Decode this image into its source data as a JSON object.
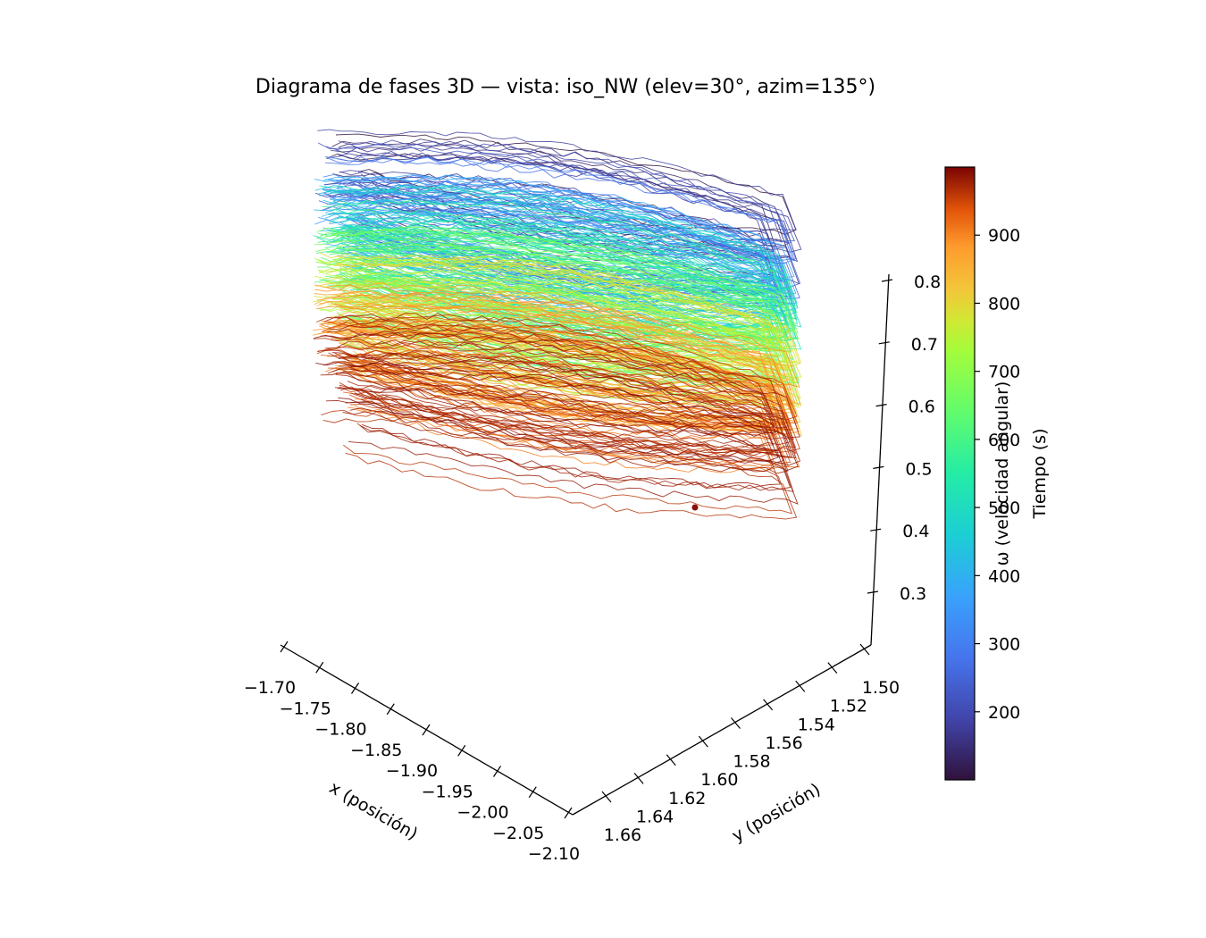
{
  "chart_data": {
    "type": "line",
    "projection": "3d",
    "title": "Diagrama de fases 3D — vista: iso_NW (elev=30°, azim=135°)",
    "xlabel": "x (posición)",
    "ylabel": "y (posición)",
    "zlabel": "ω (velocidad angular)",
    "x_ticks": [
      "−1.70",
      "−1.75",
      "−1.80",
      "−1.85",
      "−1.90",
      "−1.95",
      "−2.00",
      "−2.05",
      "−2.10"
    ],
    "y_ticks": [
      "1.50",
      "1.52",
      "1.54",
      "1.56",
      "1.58",
      "1.60",
      "1.62",
      "1.64",
      "1.66"
    ],
    "z_ticks": [
      "0.8",
      "0.7",
      "0.6",
      "0.5",
      "0.4",
      "0.3"
    ],
    "xlim": [
      -2.1,
      -1.7
    ],
    "ylim": [
      1.5,
      1.66
    ],
    "zlim": [
      0.25,
      0.8
    ],
    "colorbar": {
      "label": "Tiempo (s)",
      "colormap": "turbo",
      "range": [
        100,
        1000
      ],
      "ticks": [
        "200",
        "300",
        "400",
        "500",
        "600",
        "700",
        "800",
        "900"
      ]
    },
    "series_color_by": "time",
    "trajectory_bands": [
      {
        "t": 150,
        "z": 0.78
      },
      {
        "t": 250,
        "z": 0.74
      },
      {
        "t": 350,
        "z": 0.71
      },
      {
        "t": 450,
        "z": 0.69
      },
      {
        "t": 550,
        "z": 0.66
      },
      {
        "t": 650,
        "z": 0.62
      },
      {
        "t": 750,
        "z": 0.58
      },
      {
        "t": 850,
        "z": 0.54
      },
      {
        "t": 950,
        "z": 0.48
      }
    ],
    "final_point": {
      "t": 990,
      "z": 0.46
    },
    "grid": false
  }
}
